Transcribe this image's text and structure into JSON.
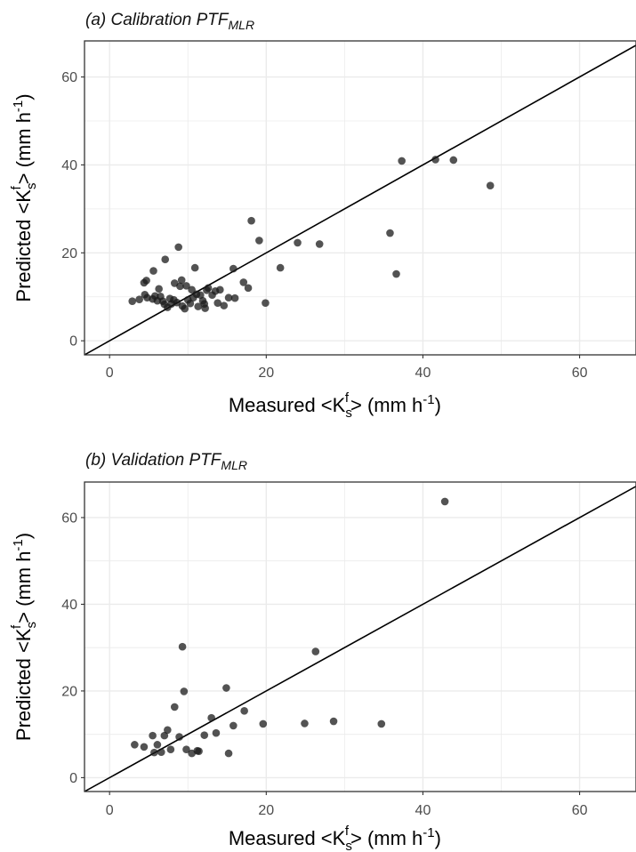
{
  "chart_data": [
    {
      "type": "scatter",
      "title": "(a) Calibration PTF",
      "title_subscript": "MLR",
      "xlabel": "Measured <K",
      "ylabel": "Predicted <K",
      "label_sub": "s",
      "label_sup": "f",
      "label_end": "> (mm h",
      "label_unit_sup": "-1",
      "label_close": ")",
      "xlim": [
        -3.2,
        67.2
      ],
      "ylim": [
        -3.2,
        68.2
      ],
      "xticks": [
        0,
        20,
        40,
        60
      ],
      "yticks": [
        0,
        20,
        40,
        60
      ],
      "reference_line": "1:1",
      "grid": true,
      "colors": {
        "points": "#1a1a1a",
        "line": "#000000",
        "grid": "#ebebeb",
        "border": "#333333"
      },
      "points": [
        {
          "x": 2.9,
          "y": 9.0
        },
        {
          "x": 3.8,
          "y": 9.4
        },
        {
          "x": 4.4,
          "y": 13.2
        },
        {
          "x": 4.7,
          "y": 13.7
        },
        {
          "x": 4.5,
          "y": 10.5
        },
        {
          "x": 4.8,
          "y": 9.8
        },
        {
          "x": 5.6,
          "y": 15.9
        },
        {
          "x": 5.5,
          "y": 9.5
        },
        {
          "x": 5.8,
          "y": 10.2
        },
        {
          "x": 6.1,
          "y": 9.1
        },
        {
          "x": 6.3,
          "y": 11.8
        },
        {
          "x": 6.5,
          "y": 10.1
        },
        {
          "x": 6.8,
          "y": 9.0
        },
        {
          "x": 7.0,
          "y": 8.3
        },
        {
          "x": 7.1,
          "y": 18.5
        },
        {
          "x": 7.4,
          "y": 7.6
        },
        {
          "x": 7.7,
          "y": 9.6
        },
        {
          "x": 7.9,
          "y": 8.4
        },
        {
          "x": 8.2,
          "y": 9.3
        },
        {
          "x": 8.3,
          "y": 13.1
        },
        {
          "x": 8.6,
          "y": 8.7
        },
        {
          "x": 8.8,
          "y": 21.3
        },
        {
          "x": 9.0,
          "y": 12.4
        },
        {
          "x": 9.2,
          "y": 13.8
        },
        {
          "x": 9.3,
          "y": 7.9
        },
        {
          "x": 9.6,
          "y": 7.3
        },
        {
          "x": 9.8,
          "y": 12.5
        },
        {
          "x": 10.0,
          "y": 9.3
        },
        {
          "x": 10.3,
          "y": 8.5
        },
        {
          "x": 10.5,
          "y": 11.6
        },
        {
          "x": 10.7,
          "y": 9.8
        },
        {
          "x": 10.9,
          "y": 16.6
        },
        {
          "x": 11.1,
          "y": 10.6
        },
        {
          "x": 11.3,
          "y": 7.8
        },
        {
          "x": 11.6,
          "y": 10.4
        },
        {
          "x": 11.9,
          "y": 9.1
        },
        {
          "x": 12.1,
          "y": 8.4
        },
        {
          "x": 12.2,
          "y": 7.4
        },
        {
          "x": 12.4,
          "y": 11.5
        },
        {
          "x": 12.6,
          "y": 12.0
        },
        {
          "x": 13.1,
          "y": 10.4
        },
        {
          "x": 13.5,
          "y": 11.3
        },
        {
          "x": 13.8,
          "y": 8.6
        },
        {
          "x": 14.1,
          "y": 11.6
        },
        {
          "x": 14.6,
          "y": 8.0
        },
        {
          "x": 15.2,
          "y": 9.8
        },
        {
          "x": 15.8,
          "y": 16.4
        },
        {
          "x": 16.0,
          "y": 9.7
        },
        {
          "x": 17.1,
          "y": 13.3
        },
        {
          "x": 17.7,
          "y": 12.0
        },
        {
          "x": 18.1,
          "y": 27.3
        },
        {
          "x": 19.1,
          "y": 22.8
        },
        {
          "x": 19.9,
          "y": 8.6
        },
        {
          "x": 21.8,
          "y": 16.6
        },
        {
          "x": 24.0,
          "y": 22.3
        },
        {
          "x": 26.8,
          "y": 22.0
        },
        {
          "x": 35.8,
          "y": 24.5
        },
        {
          "x": 36.6,
          "y": 15.2
        },
        {
          "x": 37.3,
          "y": 40.9
        },
        {
          "x": 41.6,
          "y": 41.2
        },
        {
          "x": 43.9,
          "y": 41.1
        },
        {
          "x": 48.6,
          "y": 35.3
        }
      ]
    },
    {
      "type": "scatter",
      "title": "(b) Validation PTF",
      "title_subscript": "MLR",
      "xlabel": "Measured <K",
      "ylabel": "Predicted <K",
      "label_sub": "s",
      "label_sup": "f",
      "label_end": "> (mm h",
      "label_unit_sup": "-1",
      "label_close": ")",
      "xlim": [
        -3.2,
        67.2
      ],
      "ylim": [
        -3.2,
        68.2
      ],
      "xticks": [
        0,
        20,
        40,
        60
      ],
      "yticks": [
        0,
        20,
        40,
        60
      ],
      "reference_line": "1:1",
      "grid": true,
      "colors": {
        "points": "#1a1a1a",
        "line": "#000000",
        "grid": "#ebebeb",
        "border": "#333333"
      },
      "points": [
        {
          "x": 3.2,
          "y": 7.6
        },
        {
          "x": 4.4,
          "y": 7.1
        },
        {
          "x": 5.5,
          "y": 9.7
        },
        {
          "x": 5.7,
          "y": 5.8
        },
        {
          "x": 6.1,
          "y": 7.6
        },
        {
          "x": 6.6,
          "y": 5.9
        },
        {
          "x": 7.0,
          "y": 9.7
        },
        {
          "x": 7.4,
          "y": 11.0
        },
        {
          "x": 7.8,
          "y": 6.5
        },
        {
          "x": 8.3,
          "y": 16.3
        },
        {
          "x": 8.9,
          "y": 9.4
        },
        {
          "x": 9.3,
          "y": 30.2
        },
        {
          "x": 9.5,
          "y": 19.9
        },
        {
          "x": 9.8,
          "y": 6.5
        },
        {
          "x": 10.5,
          "y": 5.6
        },
        {
          "x": 11.2,
          "y": 6.2
        },
        {
          "x": 11.4,
          "y": 6.1
        },
        {
          "x": 12.1,
          "y": 9.8
        },
        {
          "x": 13.0,
          "y": 13.8
        },
        {
          "x": 13.6,
          "y": 10.3
        },
        {
          "x": 14.9,
          "y": 20.7
        },
        {
          "x": 15.2,
          "y": 5.6
        },
        {
          "x": 15.8,
          "y": 12.0
        },
        {
          "x": 17.2,
          "y": 15.4
        },
        {
          "x": 19.6,
          "y": 12.4
        },
        {
          "x": 24.9,
          "y": 12.5
        },
        {
          "x": 26.3,
          "y": 29.1
        },
        {
          "x": 28.6,
          "y": 13.0
        },
        {
          "x": 34.7,
          "y": 12.4
        },
        {
          "x": 42.8,
          "y": 63.7
        }
      ]
    }
  ]
}
